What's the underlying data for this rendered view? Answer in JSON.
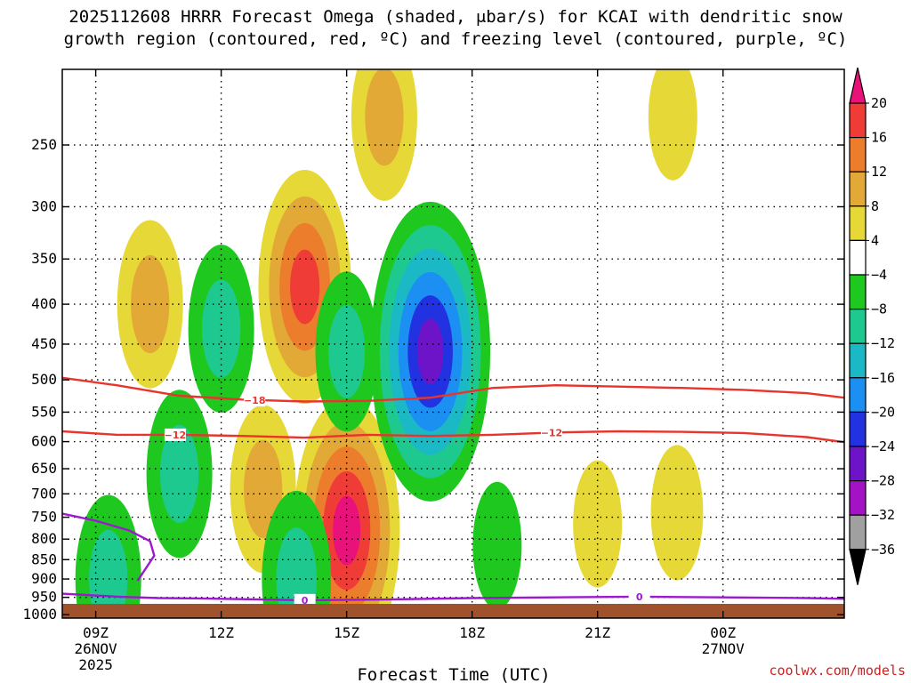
{
  "chart_data": {
    "type": "time-height cross section",
    "title_line1": "2025112608 HRRR Forecast Omega (shaded, μbar/s) for KCAI with dendritic snow",
    "title_line2": "growth region (contoured, red, ºC) and freezing level (contoured, purple, ºC)",
    "xlabel": "Forecast Time (UTC)",
    "credit": "coolwx.com/models",
    "x_ticks": [
      {
        "hour": 9,
        "label": "09Z",
        "sub1": "26NOV",
        "sub2": "2025"
      },
      {
        "hour": 12,
        "label": "12Z",
        "sub1": "",
        "sub2": ""
      },
      {
        "hour": 15,
        "label": "15Z",
        "sub1": "",
        "sub2": ""
      },
      {
        "hour": 18,
        "label": "18Z",
        "sub1": "",
        "sub2": ""
      },
      {
        "hour": 21,
        "label": "21Z",
        "sub1": "",
        "sub2": ""
      },
      {
        "hour": 24,
        "label": "00Z",
        "sub1": "27NOV",
        "sub2": ""
      }
    ],
    "x_range_hours": [
      8.2,
      26.9
    ],
    "y_range_hPa": [
      1010,
      200
    ],
    "y_ticks": [
      250,
      300,
      350,
      400,
      450,
      500,
      550,
      600,
      650,
      700,
      750,
      800,
      850,
      900,
      950,
      1000
    ],
    "colorbar": {
      "levels": [
        "20",
        "16",
        "12",
        "8",
        "4",
        "−4",
        "−8",
        "−12",
        "−16",
        "−20",
        "−24",
        "−28",
        "−32",
        "−36"
      ],
      "colors": [
        "#e8127a",
        "#f03c36",
        "#eb7d2c",
        "#e3a937",
        "#e6d836",
        "#ffffff",
        "#1ec81e",
        "#1ec990",
        "#1bb9c6",
        "#1b8ff2",
        "#2332e0",
        "#6d14c8",
        "#a312c4",
        "#a0a0a0",
        "#000000"
      ]
    },
    "shading_colors": {
      "pos4": "#e6d836",
      "pos8": "#e3a937",
      "pos12": "#eb7d2c",
      "pos16": "#f03c36",
      "pos20": "#e8127a",
      "neg4": "#1ec81e",
      "neg8": "#1ec990",
      "neg12": "#1bb9c6",
      "neg16": "#1b8ff2",
      "neg20": "#2332e0",
      "neg24": "#6d14c8"
    },
    "omega_regions": [
      {
        "time": 10.3,
        "pressure": 400,
        "sign": 1,
        "peak": 10
      },
      {
        "time": 14.0,
        "pressure": 380,
        "sign": 1,
        "peak": 18
      },
      {
        "time": 15.9,
        "pressure": 230,
        "sign": 1,
        "peak": 10
      },
      {
        "time": 15.0,
        "pressure": 780,
        "sign": 1,
        "peak": 22
      },
      {
        "time": 13.0,
        "pressure": 690,
        "sign": 1,
        "peak": 10
      },
      {
        "time": 22.8,
        "pressure": 230,
        "sign": 1,
        "peak": 5
      },
      {
        "time": 21.0,
        "pressure": 765,
        "sign": 1,
        "peak": 5
      },
      {
        "time": 22.9,
        "pressure": 740,
        "sign": 1,
        "peak": 6
      },
      {
        "time": 17.0,
        "pressure": 460,
        "sign": -1,
        "peak": -26
      },
      {
        "time": 12.0,
        "pressure": 430,
        "sign": -1,
        "peak": -10
      },
      {
        "time": 15.0,
        "pressure": 460,
        "sign": -1,
        "peak": -9
      },
      {
        "time": 11.0,
        "pressure": 660,
        "sign": -1,
        "peak": -10
      },
      {
        "time": 9.3,
        "pressure": 900,
        "sign": -1,
        "peak": -10
      },
      {
        "time": 13.8,
        "pressure": 900,
        "sign": -1,
        "peak": -11
      },
      {
        "time": 18.6,
        "pressure": 815,
        "sign": -1,
        "peak": -5
      }
    ],
    "dgz_contours": [
      {
        "value": -18,
        "label": "−18",
        "color": "#e8342c",
        "hours": [
          8.2,
          9.5,
          11,
          12.5,
          14,
          15.5,
          17,
          18.5,
          20,
          21.5,
          23,
          24.5,
          26,
          26.9
        ],
        "pressure": [
          497,
          508,
          524,
          530,
          533,
          532,
          527,
          512,
          508,
          510,
          512,
          515,
          520,
          527
        ]
      },
      {
        "value": -12,
        "label": "−12",
        "color": "#e8342c",
        "hours": [
          8.2,
          9.5,
          11,
          12.5,
          14,
          15.5,
          17,
          18.5,
          20,
          21.5,
          23,
          24.5,
          26,
          26.9
        ],
        "pressure": [
          582,
          588,
          588,
          590,
          593,
          588,
          590,
          588,
          584,
          582,
          583,
          585,
          592,
          601
        ]
      },
      {
        "value": 0,
        "label": "0",
        "color": "#9d18cf",
        "hours": [
          8.2,
          9.5,
          10.5,
          11.5,
          12.5,
          14,
          16,
          18,
          20,
          22,
          24,
          26,
          26.9
        ],
        "pressure": [
          940,
          948,
          952,
          953,
          955,
          958,
          956,
          952,
          950,
          948,
          950,
          952,
          954
        ]
      }
    ],
    "freezing_upper_branch": {
      "hours": [
        8.2,
        9.0,
        9.8,
        10.3,
        10.4,
        10.0
      ],
      "pressure": [
        742,
        758,
        780,
        805,
        840,
        905
      ]
    },
    "contour_labels": [
      {
        "text": "−18",
        "time": 12.8,
        "pressure": 531,
        "color": "#e8342c"
      },
      {
        "text": "−12",
        "time": 10.9,
        "pressure": 588,
        "color": "#e8342c"
      },
      {
        "text": "−12",
        "time": 19.9,
        "pressure": 584,
        "color": "#e8342c"
      },
      {
        "text": "0",
        "time": 14.0,
        "pressure": 958,
        "color": "#9d18cf"
      },
      {
        "text": "0",
        "time": 22.0,
        "pressure": 948,
        "color": "#9d18cf"
      }
    ],
    "ground_color": "#a0522d"
  }
}
